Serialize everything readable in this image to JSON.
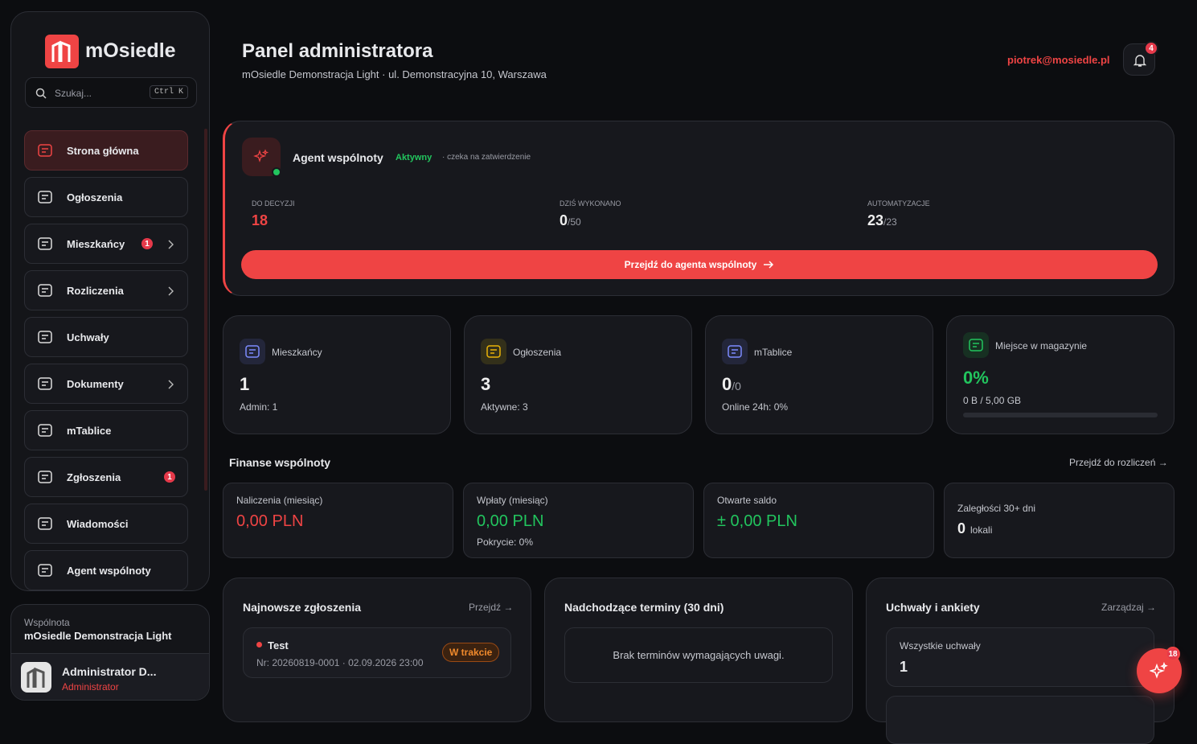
{
  "sidebar": {
    "brand": "mOsiedle",
    "search": "Szukaj...",
    "shortcut": "Ctrl K",
    "nav": [
      {
        "label": "Strona główna"
      },
      {
        "label": "Ogłoszenia"
      },
      {
        "label": "Mieszkańcy",
        "badge": "1",
        "chevron": true
      },
      {
        "label": "Rozliczenia",
        "chevron": true
      },
      {
        "label": "Uchwały"
      },
      {
        "label": "Dokumenty",
        "chevron": true
      },
      {
        "label": "mTablice"
      },
      {
        "label": "Zgłoszenia",
        "badge": "1"
      },
      {
        "label": "Wiadomości"
      },
      {
        "label": "Agent wspólnoty"
      }
    ],
    "community": {
      "caption": "Wspólnota",
      "name": "mOsiedle Demonstracja Light"
    },
    "user": {
      "name": "Administrator D...",
      "role": "Administrator"
    }
  },
  "header": {
    "title": "Panel administratora",
    "subtitle": "mOsiedle Demonstracja Light · ul. Demonstracyjna 10, Warszawa",
    "email": "piotrek@mosiedle.pl",
    "notifications": "4"
  },
  "agent": {
    "title": "Agent wspólnoty",
    "status": "Aktywny",
    "note": "· czeka na zatwierdzenie",
    "stats": [
      {
        "label": "DO DECYZJI",
        "value": "18"
      },
      {
        "label": "DZIŚ WYKONANO",
        "value": "0",
        "suffix": "/50"
      },
      {
        "label": "AUTOMATYZACJE",
        "value": "23",
        "suffix": "/23"
      }
    ],
    "button": "Przejdź do agenta wspólnoty"
  },
  "stats": [
    {
      "label": "Mieszkańcy",
      "value": "1",
      "sub": "Admin: 1"
    },
    {
      "label": "Ogłoszenia",
      "value": "3",
      "sub": "Aktywne: 3"
    },
    {
      "label": "mTablice",
      "value": "0",
      "suffix": "/0",
      "sub": "Online 24h: 0%"
    },
    {
      "label": "Miejsce w magazynie",
      "value": "0%",
      "sub": "0 B / 5,00 GB"
    }
  ],
  "finance": {
    "title": "Finanse wspólnoty",
    "link": "Przejdź do rozliczeń →",
    "cards": [
      {
        "label": "Naliczenia (miesiąc)",
        "value": "0,00 PLN"
      },
      {
        "label": "Wpłaty (miesiąc)",
        "value": "0,00 PLN",
        "sub": "Pokrycie: 0%"
      },
      {
        "label": "Otwarte saldo",
        "value": "± 0,00 PLN"
      },
      {
        "label": "Zaległości 30+ dni",
        "value": "0",
        "unit": "lokali"
      }
    ]
  },
  "panels": {
    "issues": {
      "title": "Najnowsze zgłoszenia",
      "link": "Przejdź →",
      "item": {
        "title": "Test",
        "meta": "Nr: 20260819-0001 · 02.09.2026 23:00",
        "status": "W trakcie"
      }
    },
    "deadlines": {
      "title": "Nadchodzące terminy (30 dni)",
      "empty": "Brak terminów wymagających uwagi."
    },
    "resolutions": {
      "title": "Uchwały i ankiety",
      "link": "Zarządzaj →",
      "card": {
        "label": "Wszystkie uchwały",
        "value": "1"
      }
    }
  },
  "fab_badge": "18"
}
